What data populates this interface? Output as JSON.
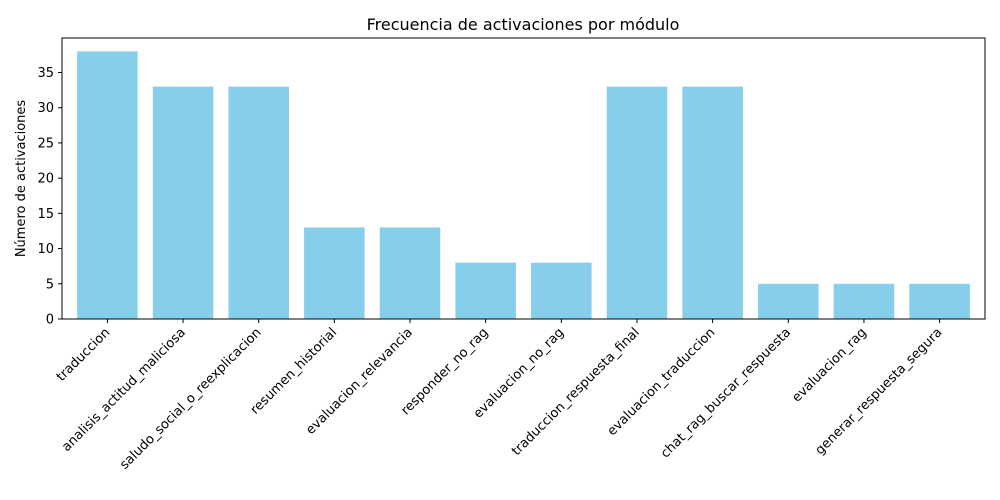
{
  "chart_data": {
    "type": "bar",
    "title": "Frecuencia de activaciones por módulo",
    "xlabel": "",
    "ylabel": "Número de activaciones",
    "categories": [
      "traduccion",
      "analisis_actitud_maliciosa",
      "saludo_social_o_reexplicacion",
      "resumen_historial",
      "evaluacion_relevancia",
      "responder_no_rag",
      "evaluacion_no_rag",
      "traduccion_respuesta_final",
      "evaluacion_traduccion",
      "chat_rag_buscar_respuesta",
      "evaluacion_rag",
      "generar_respuesta_segura"
    ],
    "values": [
      38,
      33,
      33,
      13,
      13,
      8,
      8,
      33,
      33,
      5,
      5,
      5
    ],
    "ylim": [
      0,
      39.9
    ],
    "yticks": [
      0,
      5,
      10,
      15,
      20,
      25,
      30,
      35
    ],
    "bar_color": "#87ceeb",
    "grid": false,
    "legend": "none"
  }
}
